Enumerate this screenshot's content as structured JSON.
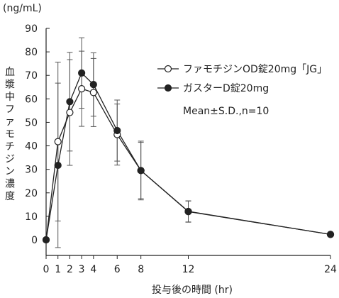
{
  "chart_data": {
    "type": "line",
    "title": "",
    "unit_label": "(ng/mL)",
    "ylabel": "血漿中ファモチジン濃度",
    "xlabel": "投与後の時間 (hr)",
    "ylim": [
      0,
      90
    ],
    "xlim": [
      0,
      24
    ],
    "y_ticks": [
      0,
      10,
      20,
      30,
      40,
      50,
      60,
      70,
      80,
      90
    ],
    "x_ticks": [
      0,
      1,
      2,
      3,
      4,
      6,
      8,
      12,
      24
    ],
    "grid": false,
    "legend_position": "upper-right",
    "legend_note": "Mean±S.D.,n=10",
    "series": [
      {
        "name": "ファモチジンOD錠20mg「JG」",
        "marker": "open-circle",
        "x": [
          0,
          1,
          2,
          3,
          4,
          6,
          8,
          12,
          24
        ],
        "y": [
          0,
          41.8,
          54.2,
          64.3,
          62.7,
          44.8,
          29.5,
          12.0,
          2.3
        ],
        "sd": [
          0,
          33.8,
          22.5,
          16.0,
          14.5,
          13.0,
          12.5,
          4.5,
          0
        ]
      },
      {
        "name": "ガスターD錠20mg",
        "marker": "filled-circle",
        "x": [
          0,
          1,
          2,
          3,
          4,
          6,
          8,
          12,
          24
        ],
        "y": [
          0,
          31.7,
          58.8,
          71.0,
          66.1,
          46.5,
          29.5,
          12.1,
          2.3
        ],
        "sd": [
          0,
          35.0,
          21.0,
          15.0,
          13.5,
          13.0,
          12.0,
          4.5,
          0
        ]
      }
    ],
    "colors": {
      "line": "#222222",
      "errorbar": "#555555"
    }
  }
}
